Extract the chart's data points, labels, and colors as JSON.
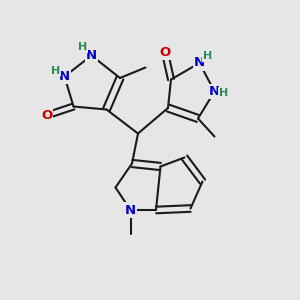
{
  "background_color": "#e6e6e6",
  "bond_color": "#1a1a1a",
  "bond_width": 1.5,
  "atom_colors": {
    "N": "#0000cc",
    "O": "#cc0000",
    "H": "#2e8b57",
    "C": "#1a1a1a"
  },
  "figsize": [
    3.0,
    3.0
  ],
  "dpi": 100
}
